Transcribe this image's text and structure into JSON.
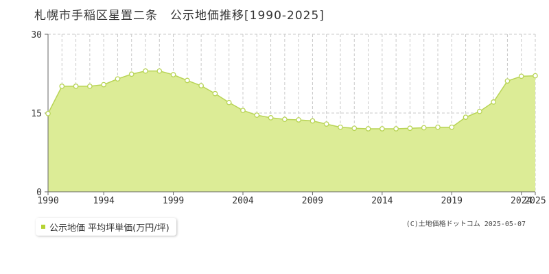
{
  "title": "札幌市手稲区星置二条　公示地価推移[1990-2025]",
  "legend": {
    "label": "公示地価 平均坪単価(万円/坪)"
  },
  "credit": "(C)土地価格ドットコム 2025-05-07",
  "colors": {
    "fill": "#dcec96",
    "line": "#b8d455",
    "marker_fill": "#ffffff",
    "marker_stroke": "#b8d455",
    "grid": "#c8c8c8",
    "axis": "#666666",
    "legend_swatch": "#b5d334"
  },
  "chart_data": {
    "type": "area",
    "x": [
      1990,
      1991,
      1992,
      1993,
      1994,
      1995,
      1996,
      1997,
      1998,
      1999,
      2000,
      2001,
      2002,
      2003,
      2004,
      2005,
      2006,
      2007,
      2008,
      2009,
      2010,
      2011,
      2012,
      2013,
      2014,
      2015,
      2016,
      2017,
      2018,
      2019,
      2020,
      2021,
      2022,
      2023,
      2024,
      2025
    ],
    "series": [
      {
        "name": "公示地価 平均坪単価(万円/坪)",
        "values": [
          14.9,
          20.1,
          20.1,
          20.1,
          20.4,
          21.5,
          22.4,
          23.0,
          23.0,
          22.3,
          21.2,
          20.2,
          18.7,
          17.0,
          15.5,
          14.6,
          14.1,
          13.8,
          13.7,
          13.5,
          12.9,
          12.3,
          12.1,
          12.0,
          12.0,
          12.0,
          12.1,
          12.2,
          12.3,
          12.3,
          14.2,
          15.3,
          17.1,
          21.1,
          22.0,
          22.1
        ]
      }
    ],
    "xticks": [
      1990,
      1994,
      1999,
      2004,
      2009,
      2014,
      2019,
      2024,
      2025
    ],
    "yticks": [
      0,
      15,
      30
    ],
    "ylim": [
      0,
      30
    ],
    "grid": true,
    "legend_position": "bottom-left"
  }
}
